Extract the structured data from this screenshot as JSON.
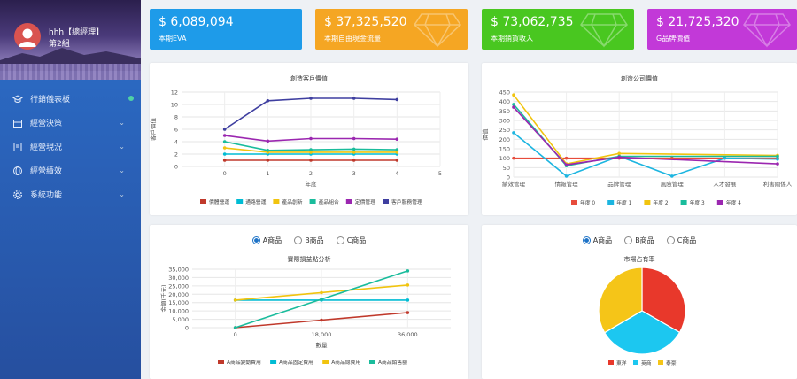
{
  "sidebar": {
    "user_name": "hhh【總經理】",
    "user_group": "第2組",
    "items": [
      {
        "label": "行銷儀表板",
        "icon": "graduation-cap-icon"
      },
      {
        "label": "經營決策",
        "icon": "calendar-icon"
      },
      {
        "label": "經營現況",
        "icon": "book-icon"
      },
      {
        "label": "經營績效",
        "icon": "globe-icon"
      },
      {
        "label": "系統功能",
        "icon": "gear-icon"
      }
    ]
  },
  "stats": [
    {
      "value": "$ 6,089,094",
      "label": "本期EVA",
      "color": "#1e9be9"
    },
    {
      "value": "$ 37,325,520",
      "label": "本期自由現金流量",
      "color": "#f5a623"
    },
    {
      "value": "$ 73,062,735",
      "label": "本期銷貨收入",
      "color": "#49c720"
    },
    {
      "value": "$ 21,725,320",
      "label": "G品牌價值",
      "color": "#c239d8"
    }
  ],
  "customer_chart": {
    "title": "創造客戶價值",
    "ylabel": "客戶價值",
    "xlabel": "年度",
    "chart_data": {
      "type": "line",
      "x": [
        0,
        1,
        2,
        3,
        4
      ],
      "xlim": [
        -1,
        5
      ],
      "ylim": [
        0,
        12
      ],
      "yticks": [
        0,
        2,
        4,
        6,
        8,
        10,
        12
      ],
      "series": [
        {
          "name": "價體營運",
          "color": "#c0392b",
          "values": [
            1.0,
            1.0,
            1.0,
            1.0,
            1.0
          ]
        },
        {
          "name": "通路營運",
          "color": "#00bcd4",
          "values": [
            2.0,
            2.0,
            2.0,
            2.0,
            2.0
          ]
        },
        {
          "name": "產品創新",
          "color": "#f1c40f",
          "values": [
            3.0,
            2.3,
            2.3,
            2.3,
            2.3
          ]
        },
        {
          "name": "產品組合",
          "color": "#1abc9c",
          "values": [
            4.0,
            2.6,
            2.7,
            2.8,
            2.7
          ]
        },
        {
          "name": "定價管理",
          "color": "#9b27b0",
          "values": [
            5.0,
            4.1,
            4.5,
            4.5,
            4.4
          ]
        },
        {
          "name": "客戶服務管理",
          "color": "#3f3fa0",
          "values": [
            6.0,
            10.6,
            11.0,
            11.0,
            10.8
          ]
        }
      ]
    }
  },
  "company_chart": {
    "title": "創造公司價值",
    "ylabel": "價值",
    "chart_data": {
      "type": "line",
      "categories": [
        "績效管理",
        "情報管理",
        "品牌管理",
        "風險管理",
        "人才發展",
        "利害關係人"
      ],
      "ylim": [
        0,
        450
      ],
      "yticks": [
        0,
        50,
        100,
        150,
        200,
        250,
        300,
        350,
        400,
        450
      ],
      "series": [
        {
          "name": "年度 0",
          "color": "#e74c3c",
          "values": [
            100,
            100,
            100,
            100,
            100,
            100
          ]
        },
        {
          "name": "年度 1",
          "color": "#1cb5e0",
          "values": [
            235,
            5,
            110,
            5,
            100,
            95
          ]
        },
        {
          "name": "年度 2",
          "color": "#f1c40f",
          "values": [
            435,
            70,
            125,
            null,
            null,
            115
          ]
        },
        {
          "name": "年度 3",
          "color": "#1abc9c",
          "values": [
            385,
            60,
            110,
            null,
            null,
            110
          ]
        },
        {
          "name": "年度 4",
          "color": "#9b27b0",
          "values": [
            370,
            65,
            105,
            null,
            null,
            70
          ]
        }
      ]
    }
  },
  "breakeven_panel": {
    "options": [
      "A商品",
      "B商品",
      "C商品"
    ],
    "selected": 0,
    "title": "實際損益點分析",
    "ylabel": "金額(千元)",
    "xlabel": "數量",
    "chart_data": {
      "type": "line",
      "x": [
        0,
        18000,
        36000
      ],
      "xticks": [
        "0",
        "18,000",
        "36,000"
      ],
      "ylim": [
        0,
        35000
      ],
      "yticks": [
        "0",
        "5,000",
        "10,000",
        "15,000",
        "20,000",
        "25,000",
        "30,000",
        "35,000"
      ],
      "series": [
        {
          "name": "A商品變動費用",
          "color": "#c0392b",
          "values": [
            0,
            4500,
            9000
          ]
        },
        {
          "name": "A商品固定費用",
          "color": "#00bcd4",
          "values": [
            16500,
            16500,
            16500
          ]
        },
        {
          "name": "A商品總費用",
          "color": "#f1c40f",
          "values": [
            16500,
            21000,
            25500
          ]
        },
        {
          "name": "A商品銷售額",
          "color": "#1abc9c",
          "values": [
            0,
            17000,
            34000
          ]
        }
      ]
    }
  },
  "market_panel": {
    "options": [
      "A商品",
      "B商品",
      "C商品"
    ],
    "selected": 0,
    "title": "市場占有率",
    "chart_data": {
      "type": "pie",
      "slices": [
        {
          "name": "東洋",
          "color": "#e8382b",
          "value": 33.3
        },
        {
          "name": "英商",
          "color": "#1cc7f0",
          "value": 33.3
        },
        {
          "name": "泰豪",
          "color": "#f5c518",
          "value": 33.4
        }
      ]
    }
  }
}
